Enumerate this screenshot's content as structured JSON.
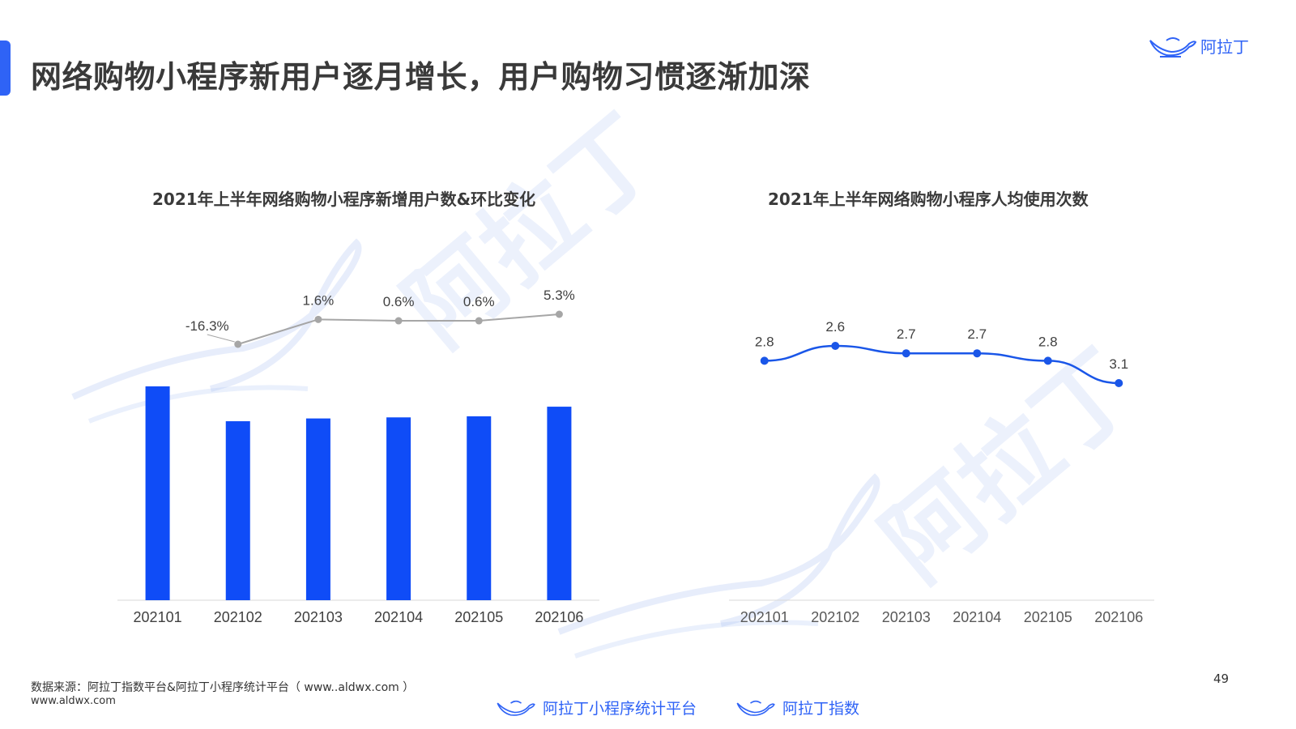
{
  "header": {
    "title": "网络购物小程序新用户逐月增长，用户购物习惯逐渐加深",
    "brand": "阿拉丁"
  },
  "watermark_text": "阿拉丁",
  "colors": {
    "accent": "#2f63f6",
    "bar": "#0f4cf7",
    "ratio_line": "#a6a6a6",
    "usage_line": "#1a56e8"
  },
  "chart_data": [
    {
      "type": "bar",
      "title": "2021年上半年网络购物小程序新增用户数&环比变化",
      "categories": [
        "202101",
        "202102",
        "202103",
        "202104",
        "202105",
        "202106"
      ],
      "series": [
        {
          "values": [
            100,
            83.7,
            85.0,
            85.5,
            86.0,
            90.5
          ]
        },
        {
          "type": "line",
          "values": [
            -16.3,
            1.6,
            0.6,
            0.6,
            5.3
          ],
          "labels": [
            "-16.3%",
            "1.6%",
            "0.6%",
            "0.6%",
            "5.3%"
          ],
          "x": [
            "202102",
            "202103",
            "202104",
            "202105",
            "202106"
          ]
        }
      ]
    },
    {
      "type": "line",
      "title": "2021年上半年网络购物小程序人均使用次数",
      "categories": [
        "202101",
        "202102",
        "202103",
        "202104",
        "202105",
        "202106"
      ],
      "series": [
        {
          "values": [
            2.8,
            2.6,
            2.7,
            2.7,
            2.8,
            3.1
          ],
          "labels": [
            "2.8",
            "2.6",
            "2.7",
            "2.7",
            "2.8",
            "3.1"
          ]
        }
      ]
    }
  ],
  "footer": {
    "source": "数据来源：阿拉丁指数平台&阿拉丁小程序统计平台（ www..aldwx.com ）",
    "url": "www.aldwx.com",
    "page_number": "49",
    "brand_stats": "阿拉丁小程序统计平台",
    "brand_index": "阿拉丁指数"
  }
}
